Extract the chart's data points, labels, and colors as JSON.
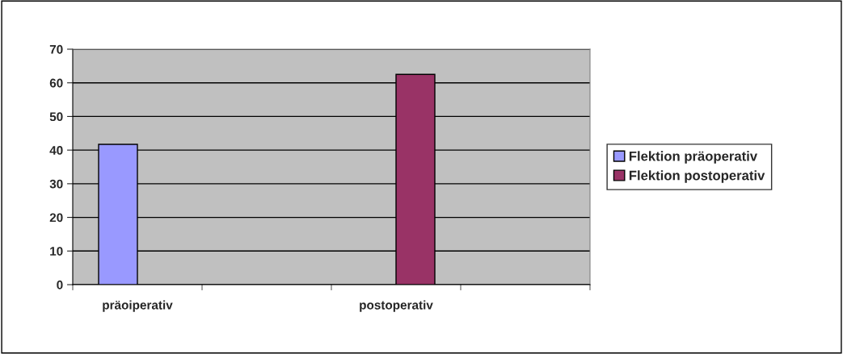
{
  "chart_data": {
    "type": "bar",
    "categories": [
      "präoiperativ",
      null,
      "postoperativ",
      null
    ],
    "series": [
      {
        "name": "Flektion präoperativ",
        "color": "#9999ff",
        "values": [
          41.7,
          null,
          null,
          null
        ]
      },
      {
        "name": "Flektion postoperativ",
        "color": "#993366",
        "values": [
          null,
          null,
          62.5,
          null
        ]
      }
    ],
    "ylim": [
      0,
      70
    ],
    "yticks": [
      0,
      10,
      20,
      30,
      40,
      50,
      60,
      70
    ],
    "grid": "y",
    "legend": "right"
  }
}
